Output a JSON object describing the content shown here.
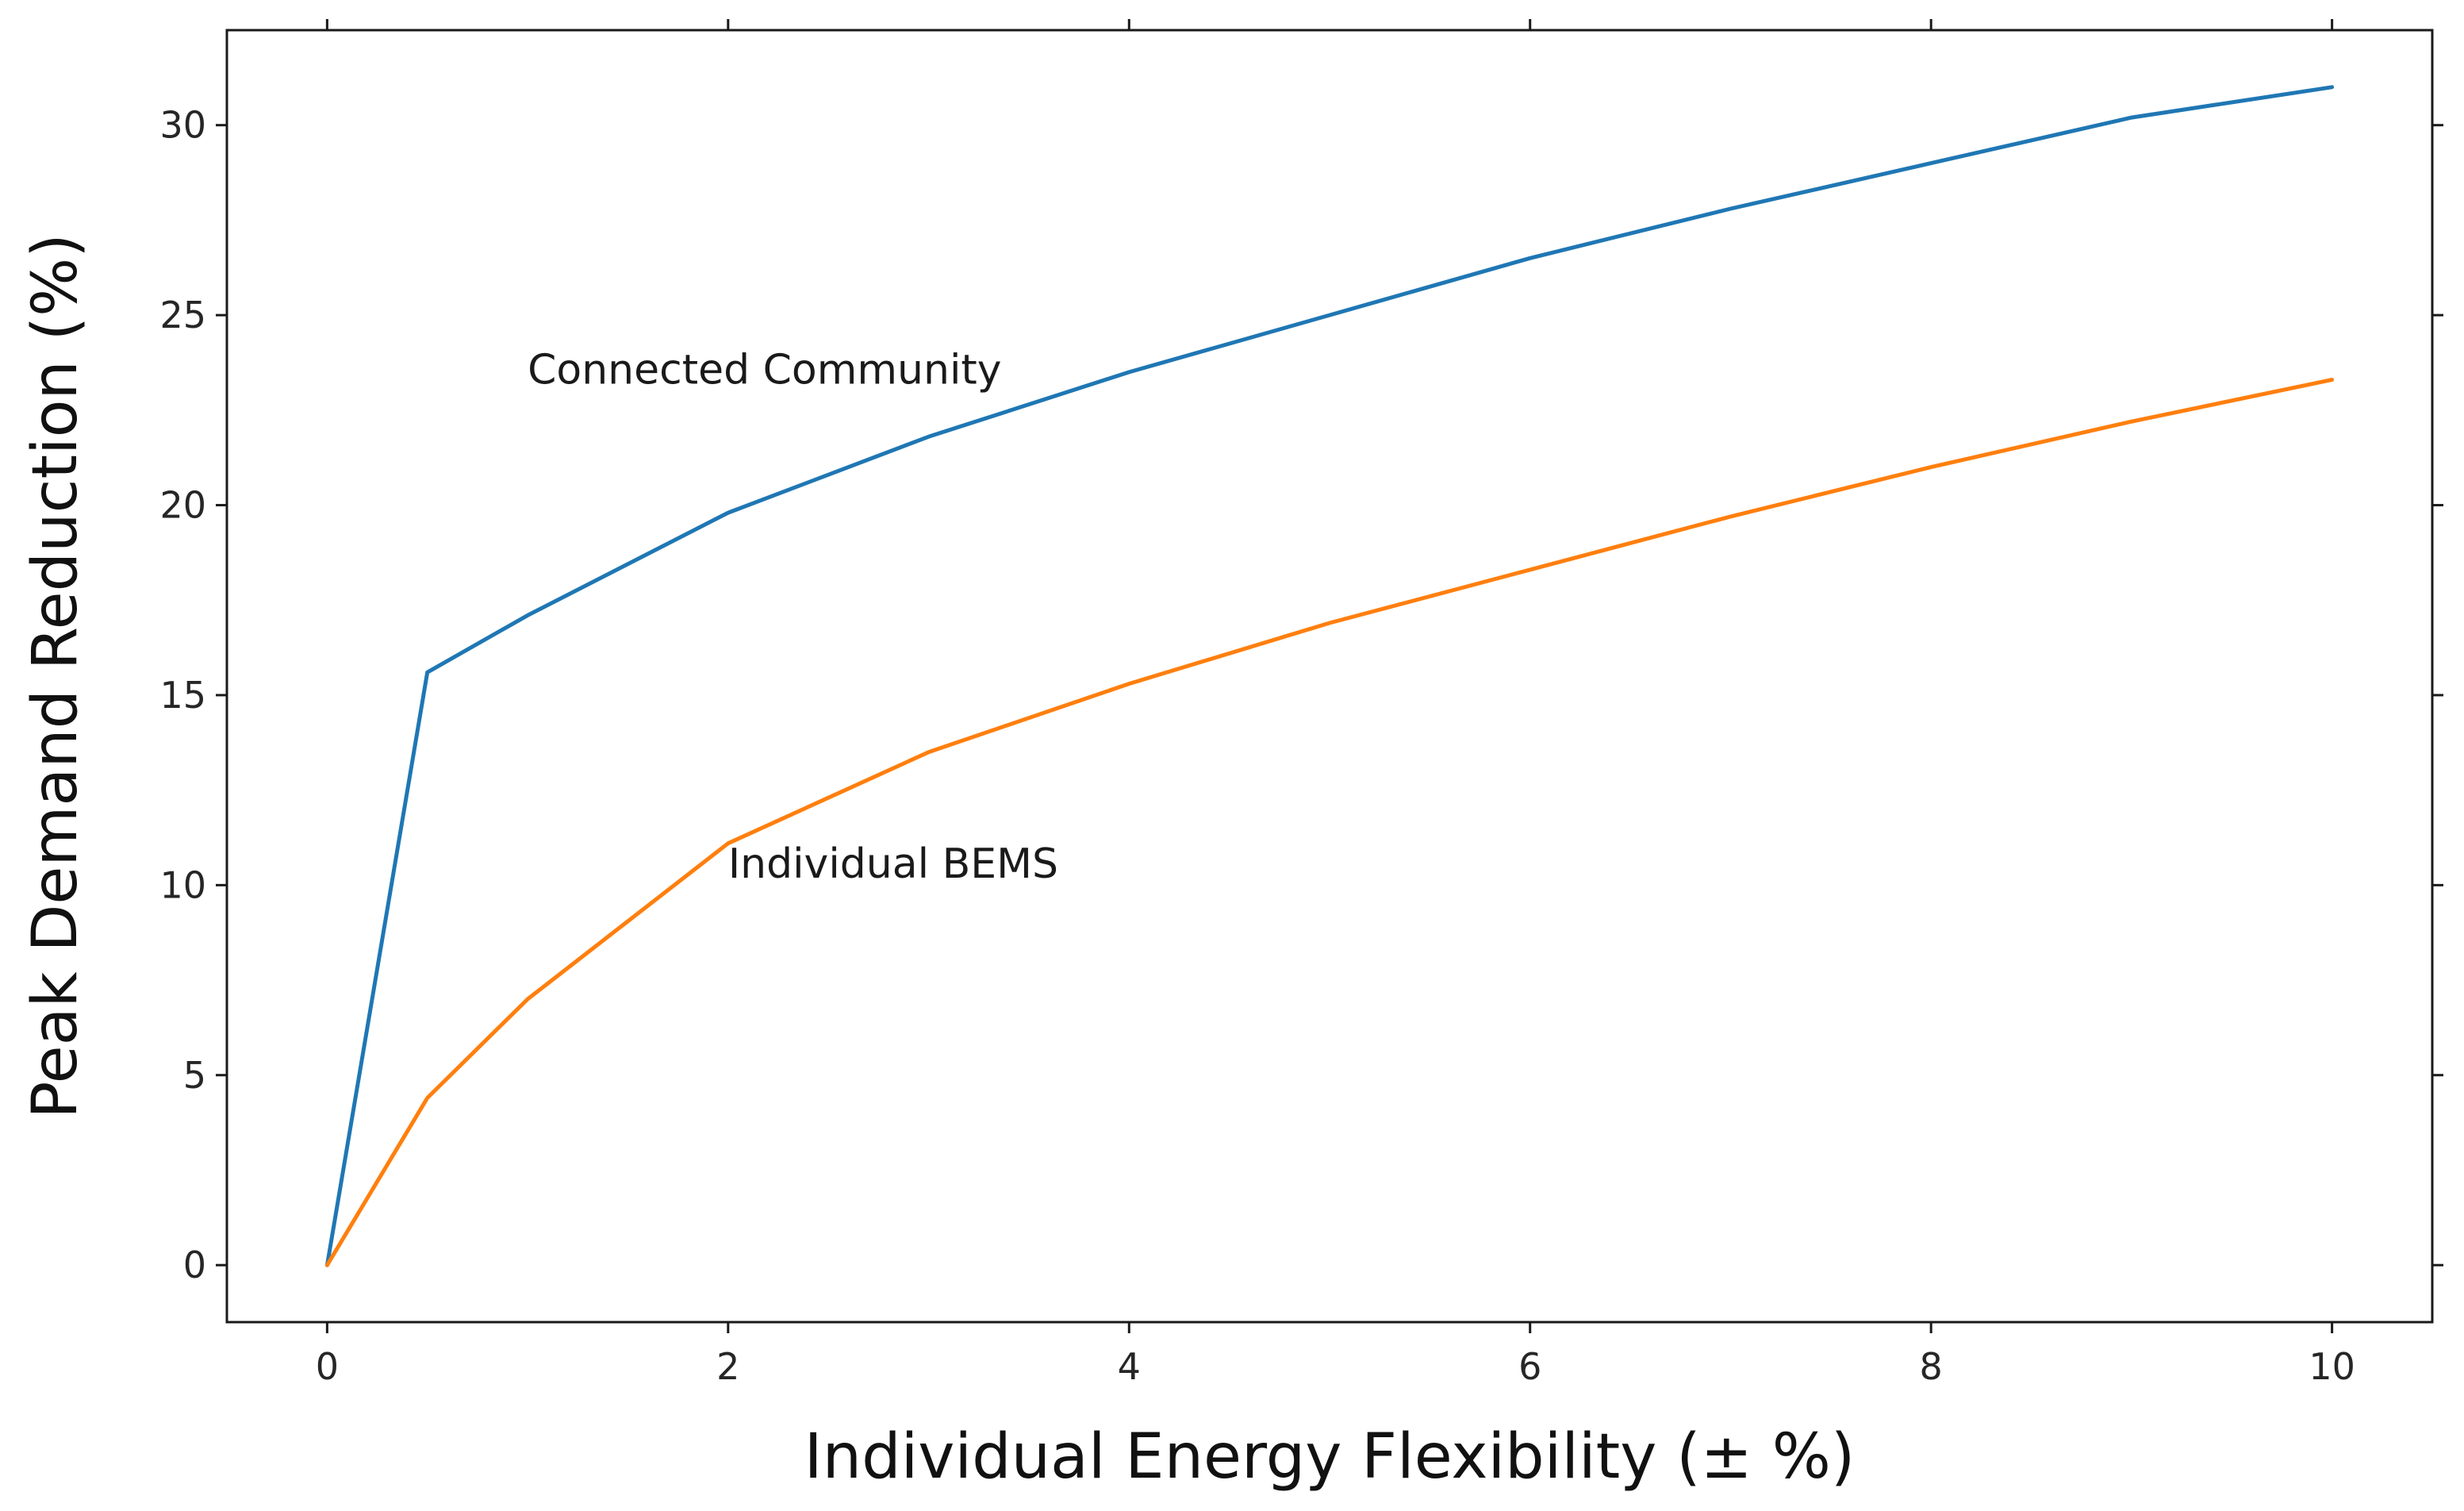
{
  "chart_data": {
    "type": "line",
    "title": "",
    "xlabel": "Individual Energy Flexibility (± %)",
    "ylabel": "Peak Demand Reduction (%)",
    "xlim": [
      -0.5,
      10.5
    ],
    "ylim": [
      -1.5,
      32.5
    ],
    "xticks": [
      0,
      2,
      4,
      6,
      8,
      10
    ],
    "yticks": [
      0,
      5,
      10,
      15,
      20,
      25,
      30
    ],
    "grid": false,
    "legend": "none",
    "series": [
      {
        "name": "Connected Community",
        "color": "#1f77b4",
        "x": [
          0,
          0.5,
          1,
          2,
          3,
          4,
          5,
          6,
          7,
          8,
          9,
          10
        ],
        "y": [
          0,
          15.6,
          17.1,
          19.8,
          21.8,
          23.5,
          25.0,
          26.5,
          27.8,
          29.0,
          30.2,
          31.0
        ]
      },
      {
        "name": "Individual BEMS",
        "color": "#ff7f0e",
        "x": [
          0,
          0.5,
          1,
          2,
          3,
          4,
          5,
          6,
          7,
          8,
          9,
          10
        ],
        "y": [
          0,
          4.4,
          7.0,
          11.1,
          13.5,
          15.3,
          16.9,
          18.3,
          19.7,
          21.0,
          22.2,
          23.3
        ]
      }
    ],
    "annotations": [
      {
        "text": "Connected Community",
        "x": 1.0,
        "y": 23.2
      },
      {
        "text": "Individual BEMS",
        "x": 2.0,
        "y": 10.2
      }
    ]
  }
}
